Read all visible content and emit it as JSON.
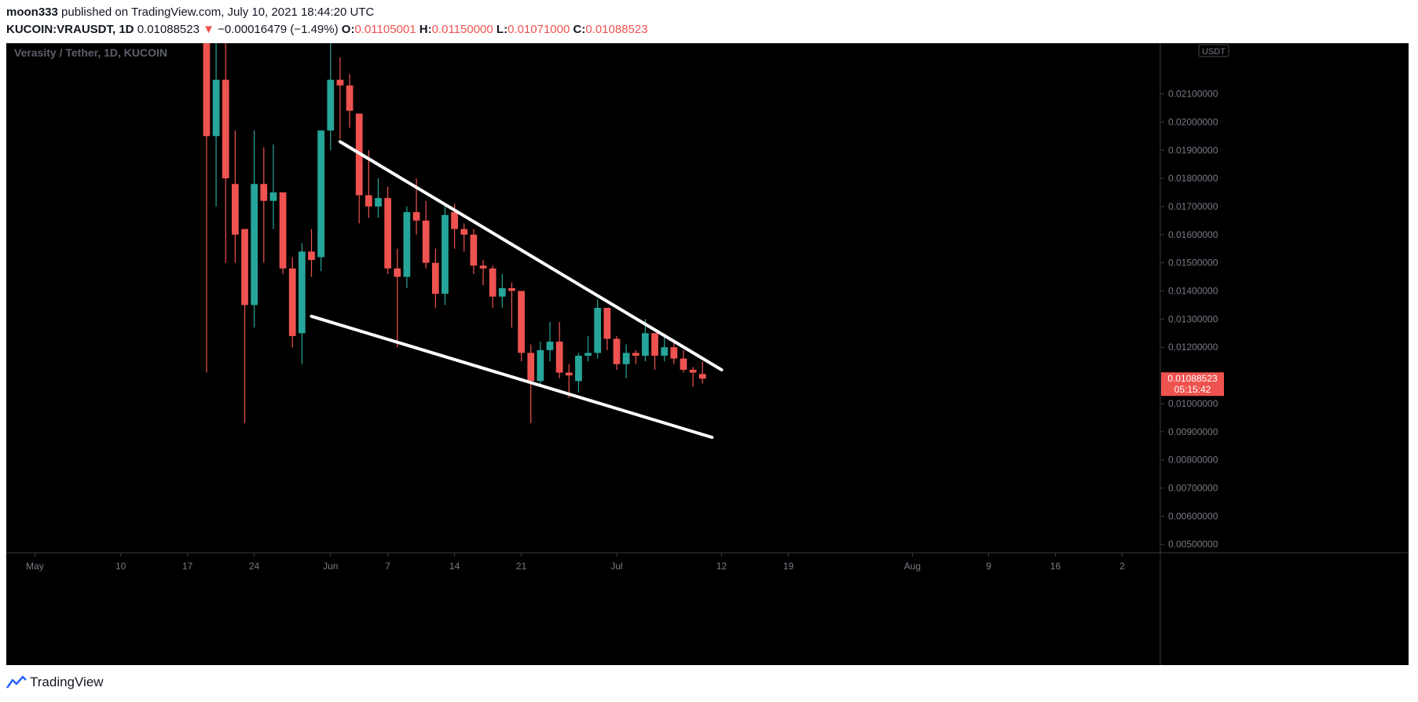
{
  "header": {
    "author": "moon333",
    "published_text": "published on TradingView.com, July 10, 2021 18:44:20 UTC"
  },
  "ohlc": {
    "symbol": "KUCOIN:VRAUSDT, 1D",
    "price": "0.01088523",
    "arrow": "▼",
    "change": "−0.00016479 (−1.49%)",
    "o_label": "O:",
    "o_value": "0.01105001",
    "h_label": "H:",
    "h_value": "0.01150000",
    "l_label": "L:",
    "l_value": "0.01071000",
    "c_label": "C:",
    "c_value": "0.01088523"
  },
  "legend": {
    "title": "Verasity / Tether, 1D, KUCOIN"
  },
  "price_axis": {
    "currency": "USDT",
    "ticks": [
      "0.02100000",
      "0.02000000",
      "0.01900000",
      "0.01800000",
      "0.01700000",
      "0.01600000",
      "0.01500000",
      "0.01400000",
      "0.01300000",
      "0.01200000",
      "0.01000000",
      "0.00900000",
      "0.00800000",
      "0.00700000",
      "0.00600000",
      "0.00500000"
    ],
    "last_price_label": "0.01088523",
    "countdown": "05:15:42"
  },
  "time_axis": {
    "ticks": [
      {
        "label": "May",
        "date": "2021-05-01"
      },
      {
        "label": "10",
        "date": "2021-05-10"
      },
      {
        "label": "17",
        "date": "2021-05-17"
      },
      {
        "label": "24",
        "date": "2021-05-24"
      },
      {
        "label": "Jun",
        "date": "2021-06-01"
      },
      {
        "label": "7",
        "date": "2021-06-07"
      },
      {
        "label": "14",
        "date": "2021-06-14"
      },
      {
        "label": "21",
        "date": "2021-06-21"
      },
      {
        "label": "Jul",
        "date": "2021-07-01"
      },
      {
        "label": "12",
        "date": "2021-07-12"
      },
      {
        "label": "19",
        "date": "2021-07-19"
      },
      {
        "label": "Aug",
        "date": "2021-08-01"
      },
      {
        "label": "9",
        "date": "2021-08-09"
      },
      {
        "label": "16",
        "date": "2021-08-16"
      },
      {
        "label": "2",
        "date": "2021-08-23"
      }
    ]
  },
  "colors": {
    "up": "#26a69a",
    "down": "#ef5350",
    "background": "#000000",
    "trendline": "#ffffff",
    "axis_text": "#787b86"
  },
  "chart_data": {
    "type": "candlestick",
    "title": "Verasity / Tether, 1D, KUCOIN",
    "xlim": [
      "2021-04-28",
      "2021-08-27"
    ],
    "ylim": [
      0.0047,
      0.0228
    ],
    "candles": [
      {
        "date": "2021-05-19",
        "o": 0.0235,
        "h": 0.024,
        "l": 0.0111,
        "c": 0.0195
      },
      {
        "date": "2021-05-20",
        "o": 0.0195,
        "h": 0.024,
        "l": 0.017,
        "c": 0.0215
      },
      {
        "date": "2021-05-21",
        "o": 0.0215,
        "h": 0.024,
        "l": 0.015,
        "c": 0.018
      },
      {
        "date": "2021-05-22",
        "o": 0.0178,
        "h": 0.0197,
        "l": 0.015,
        "c": 0.016
      },
      {
        "date": "2021-05-23",
        "o": 0.0162,
        "h": 0.0162,
        "l": 0.0093,
        "c": 0.0135
      },
      {
        "date": "2021-05-24",
        "o": 0.0135,
        "h": 0.0197,
        "l": 0.0127,
        "c": 0.0178
      },
      {
        "date": "2021-05-25",
        "o": 0.0178,
        "h": 0.0191,
        "l": 0.015,
        "c": 0.0172
      },
      {
        "date": "2021-05-26",
        "o": 0.0172,
        "h": 0.0192,
        "l": 0.0162,
        "c": 0.0175
      },
      {
        "date": "2021-05-27",
        "o": 0.0175,
        "h": 0.0175,
        "l": 0.0146,
        "c": 0.0148
      },
      {
        "date": "2021-05-28",
        "o": 0.0148,
        "h": 0.0152,
        "l": 0.012,
        "c": 0.0124
      },
      {
        "date": "2021-05-29",
        "o": 0.0125,
        "h": 0.0157,
        "l": 0.0114,
        "c": 0.0154
      },
      {
        "date": "2021-05-30",
        "o": 0.0154,
        "h": 0.0162,
        "l": 0.0145,
        "c": 0.0151
      },
      {
        "date": "2021-05-31",
        "o": 0.0152,
        "h": 0.0197,
        "l": 0.0147,
        "c": 0.0197
      },
      {
        "date": "2021-06-01",
        "o": 0.0197,
        "h": 0.0228,
        "l": 0.019,
        "c": 0.0215
      },
      {
        "date": "2021-06-02",
        "o": 0.0215,
        "h": 0.0223,
        "l": 0.0194,
        "c": 0.0213
      },
      {
        "date": "2021-06-03",
        "o": 0.0213,
        "h": 0.0217,
        "l": 0.0198,
        "c": 0.0204
      },
      {
        "date": "2021-06-04",
        "o": 0.0203,
        "h": 0.0203,
        "l": 0.0164,
        "c": 0.0174
      },
      {
        "date": "2021-06-05",
        "o": 0.0174,
        "h": 0.019,
        "l": 0.0166,
        "c": 0.017
      },
      {
        "date": "2021-06-06",
        "o": 0.017,
        "h": 0.018,
        "l": 0.0166,
        "c": 0.0173
      },
      {
        "date": "2021-06-07",
        "o": 0.0173,
        "h": 0.0177,
        "l": 0.0146,
        "c": 0.0148
      },
      {
        "date": "2021-06-08",
        "o": 0.0148,
        "h": 0.0155,
        "l": 0.012,
        "c": 0.0145
      },
      {
        "date": "2021-06-09",
        "o": 0.0145,
        "h": 0.017,
        "l": 0.0141,
        "c": 0.0168
      },
      {
        "date": "2021-06-10",
        "o": 0.0168,
        "h": 0.018,
        "l": 0.016,
        "c": 0.0165
      },
      {
        "date": "2021-06-11",
        "o": 0.0165,
        "h": 0.0172,
        "l": 0.0148,
        "c": 0.015
      },
      {
        "date": "2021-06-12",
        "o": 0.015,
        "h": 0.0155,
        "l": 0.0134,
        "c": 0.0139
      },
      {
        "date": "2021-06-13",
        "o": 0.0139,
        "h": 0.017,
        "l": 0.0135,
        "c": 0.0167
      },
      {
        "date": "2021-06-14",
        "o": 0.0168,
        "h": 0.0171,
        "l": 0.0155,
        "c": 0.0162
      },
      {
        "date": "2021-06-15",
        "o": 0.0162,
        "h": 0.0164,
        "l": 0.0154,
        "c": 0.016
      },
      {
        "date": "2021-06-16",
        "o": 0.016,
        "h": 0.0162,
        "l": 0.0146,
        "c": 0.0149
      },
      {
        "date": "2021-06-17",
        "o": 0.0149,
        "h": 0.0151,
        "l": 0.0142,
        "c": 0.0148
      },
      {
        "date": "2021-06-18",
        "o": 0.0148,
        "h": 0.0149,
        "l": 0.0134,
        "c": 0.0138
      },
      {
        "date": "2021-06-19",
        "o": 0.0138,
        "h": 0.0146,
        "l": 0.0134,
        "c": 0.0141
      },
      {
        "date": "2021-06-20",
        "o": 0.0141,
        "h": 0.0143,
        "l": 0.0127,
        "c": 0.014
      },
      {
        "date": "2021-06-21",
        "o": 0.014,
        "h": 0.014,
        "l": 0.0115,
        "c": 0.0118
      },
      {
        "date": "2021-06-22",
        "o": 0.0118,
        "h": 0.0121,
        "l": 0.0093,
        "c": 0.0108
      },
      {
        "date": "2021-06-23",
        "o": 0.0108,
        "h": 0.0122,
        "l": 0.0106,
        "c": 0.0119
      },
      {
        "date": "2021-06-24",
        "o": 0.0119,
        "h": 0.0129,
        "l": 0.0115,
        "c": 0.0122
      },
      {
        "date": "2021-06-25",
        "o": 0.0122,
        "h": 0.0129,
        "l": 0.0109,
        "c": 0.0111
      },
      {
        "date": "2021-06-26",
        "o": 0.0111,
        "h": 0.0114,
        "l": 0.0102,
        "c": 0.011
      },
      {
        "date": "2021-06-27",
        "o": 0.0108,
        "h": 0.0118,
        "l": 0.0104,
        "c": 0.0117
      },
      {
        "date": "2021-06-28",
        "o": 0.0117,
        "h": 0.0124,
        "l": 0.0115,
        "c": 0.0118
      },
      {
        "date": "2021-06-29",
        "o": 0.0118,
        "h": 0.0137,
        "l": 0.0116,
        "c": 0.0134
      },
      {
        "date": "2021-06-30",
        "o": 0.0134,
        "h": 0.0134,
        "l": 0.0119,
        "c": 0.0123
      },
      {
        "date": "2021-07-01",
        "o": 0.0123,
        "h": 0.0124,
        "l": 0.0112,
        "c": 0.0114
      },
      {
        "date": "2021-07-02",
        "o": 0.0114,
        "h": 0.0121,
        "l": 0.0109,
        "c": 0.0118
      },
      {
        "date": "2021-07-03",
        "o": 0.0118,
        "h": 0.0119,
        "l": 0.0114,
        "c": 0.0117
      },
      {
        "date": "2021-07-04",
        "o": 0.0117,
        "h": 0.013,
        "l": 0.0115,
        "c": 0.0125
      },
      {
        "date": "2021-07-05",
        "o": 0.0125,
        "h": 0.0125,
        "l": 0.0112,
        "c": 0.0117
      },
      {
        "date": "2021-07-06",
        "o": 0.0117,
        "h": 0.0124,
        "l": 0.0115,
        "c": 0.012
      },
      {
        "date": "2021-07-07",
        "o": 0.012,
        "h": 0.0122,
        "l": 0.0114,
        "c": 0.0116
      },
      {
        "date": "2021-07-08",
        "o": 0.0116,
        "h": 0.0119,
        "l": 0.0111,
        "c": 0.0112
      },
      {
        "date": "2021-07-09",
        "o": 0.0112,
        "h": 0.0113,
        "l": 0.0106,
        "c": 0.0111
      },
      {
        "date": "2021-07-10",
        "o": 0.01105,
        "h": 0.0115,
        "l": 0.01071,
        "c": 0.01088523
      }
    ],
    "trendlines": [
      {
        "name": "upper",
        "start": {
          "date": "2021-06-02",
          "price": 0.0193
        },
        "end": {
          "date": "2021-07-12",
          "price": 0.0112
        }
      },
      {
        "name": "lower",
        "start": {
          "date": "2021-05-30",
          "price": 0.0131
        },
        "end": {
          "date": "2021-07-11",
          "price": 0.0088
        }
      }
    ]
  }
}
